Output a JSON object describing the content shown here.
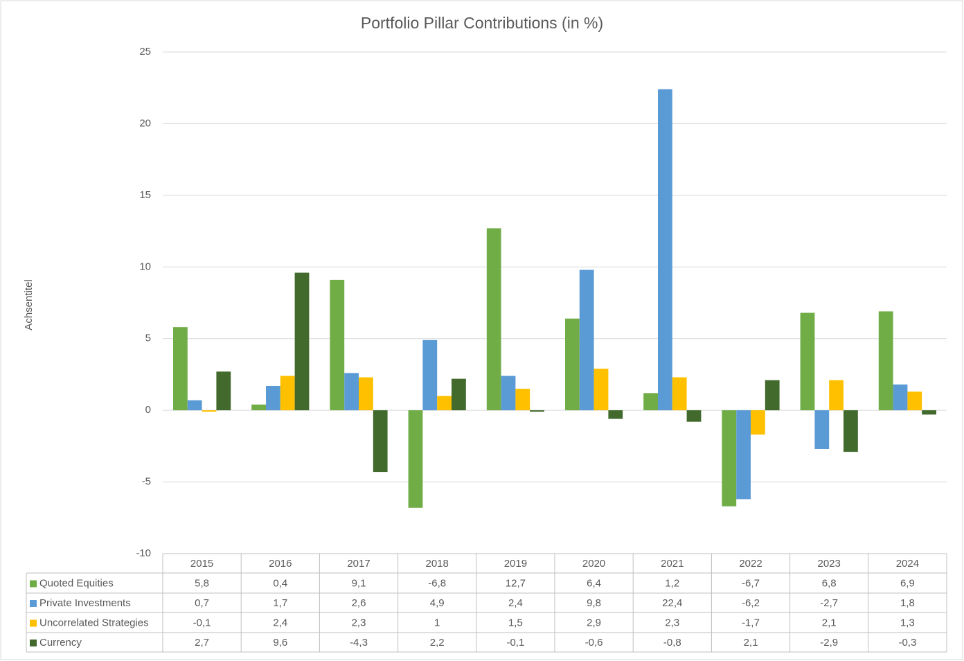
{
  "chart_data": {
    "type": "bar",
    "title": "Portfolio Pillar Contributions (in %)",
    "y_label": "Achsentitel",
    "categories": [
      "2015",
      "2016",
      "2017",
      "2018",
      "2019",
      "2020",
      "2021",
      "2022",
      "2023",
      "2024"
    ],
    "series": [
      {
        "name": "Quoted Equities",
        "color": "#70ad47",
        "values": [
          5.8,
          0.4,
          9.1,
          -6.8,
          12.7,
          6.4,
          1.2,
          -6.7,
          6.8,
          6.9
        ],
        "value_labels": [
          "5,8",
          "0,4",
          "9,1",
          "-6,8",
          "12,7",
          "6,4",
          "1,2",
          "-6,7",
          "6,8",
          "6,9"
        ]
      },
      {
        "name": "Private Investments",
        "color": "#5b9bd5",
        "values": [
          0.7,
          1.7,
          2.6,
          4.9,
          2.4,
          9.8,
          22.4,
          -6.2,
          -2.7,
          1.8
        ],
        "value_labels": [
          "0,7",
          "1,7",
          "2,6",
          "4,9",
          "2,4",
          "9,8",
          "22,4",
          "-6,2",
          "-2,7",
          "1,8"
        ]
      },
      {
        "name": "Uncorrelated Strategies",
        "color": "#ffc000",
        "values": [
          -0.1,
          2.4,
          2.3,
          1,
          1.5,
          2.9,
          2.3,
          -1.7,
          2.1,
          1.3
        ],
        "value_labels": [
          "-0,1",
          "2,4",
          "2,3",
          "1",
          "1,5",
          "2,9",
          "2,3",
          "-1,7",
          "2,1",
          "1,3"
        ]
      },
      {
        "name": "Currency",
        "color": "#426a2c",
        "values": [
          2.7,
          9.6,
          -4.3,
          2.2,
          -0.1,
          -0.6,
          -0.8,
          2.1,
          -2.9,
          -0.3
        ],
        "value_labels": [
          "2,7",
          "9,6",
          "-4,3",
          "2,2",
          "-0,1",
          "-0,6",
          "-0,8",
          "2,1",
          "-2,9",
          "-0,3"
        ]
      }
    ],
    "ylim": [
      -10,
      25
    ],
    "yticks": [
      -10,
      -5,
      0,
      5,
      10,
      15,
      20,
      25
    ],
    "grid": true
  }
}
